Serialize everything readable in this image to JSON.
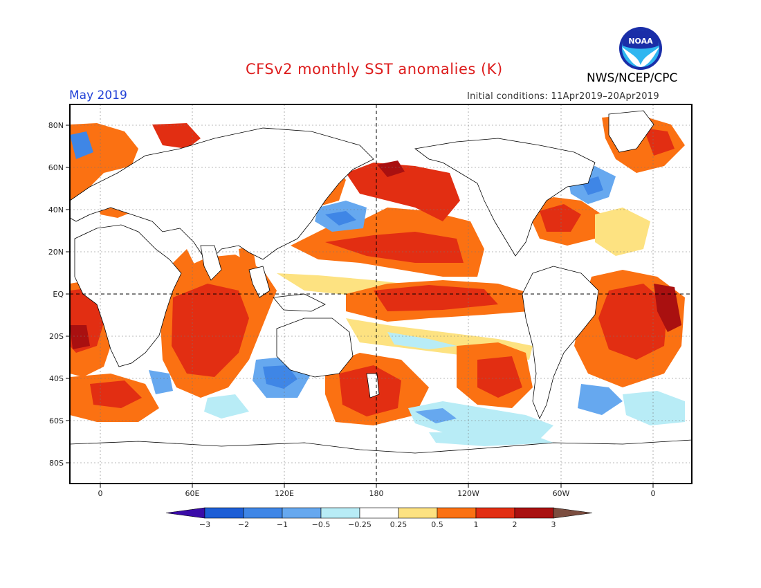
{
  "title": "CFSv2 monthly SST anomalies (K)",
  "agency": "NWS/NCEP/CPC",
  "logo_text": "NOAA",
  "valid_month": "May 2019",
  "initial_conditions": "Initial conditions: 11Apr2019–20Apr2019",
  "axes": {
    "lat_labels": [
      "80N",
      "60N",
      "40N",
      "20N",
      "EQ",
      "20S",
      "40S",
      "60S",
      "80S"
    ],
    "lon_labels": [
      "0",
      "60E",
      "120E",
      "180",
      "120W",
      "60W",
      "0"
    ]
  },
  "colorbar": {
    "labels": [
      "−3",
      "−2",
      "−1",
      "−0.5",
      "−0.25",
      "0.25",
      "0.5",
      "1",
      "2",
      "3"
    ],
    "colors": [
      "#3a0ba8",
      "#1d5ed6",
      "#3f86e6",
      "#66a8ef",
      "#b8ecf6",
      "#ffffff",
      "#fde281",
      "#fb7112",
      "#e22e12",
      "#a91010",
      "#7b4d3f"
    ]
  },
  "colors": {
    "title": "#dd1c1c",
    "month": "#1f3fd6",
    "warm_1": "#fde281",
    "warm_2": "#fb7112",
    "warm_3": "#e22e12",
    "warm_4": "#a91010",
    "cool_1": "#b8ecf6",
    "cool_2": "#66a8ef",
    "cool_3": "#3f86e6"
  }
}
